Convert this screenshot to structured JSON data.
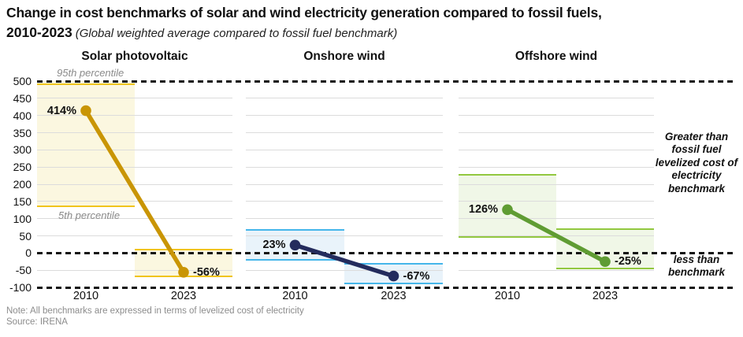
{
  "header": {
    "title_line1": "Change in cost benchmarks of solar and wind electricity generation compared to fossil fuels,",
    "title_line2_bold": "2010-2023",
    "subtitle": "(Global weighted average compared to fossil fuel benchmark)"
  },
  "annotations": {
    "greater": "Greater than fossil fuel levelized cost of electricity benchmark",
    "less": "less than benchmark",
    "p95": "95th percentile",
    "p5": "5th percentile"
  },
  "footer": {
    "note": "Note: All benchmarks are expressed in terms of levelized cost of electricity",
    "source": "Source: IRENA"
  },
  "chart_data": {
    "type": "line",
    "title": "Change in cost benchmarks of solar and wind electricity generation compared to fossil fuels, 2010-2023",
    "subtitle": "Global weighted average compared to fossil fuel benchmark",
    "x_categories": [
      "2010",
      "2023"
    ],
    "ylim": [
      -100,
      500
    ],
    "yticks": [
      500,
      450,
      400,
      350,
      300,
      250,
      200,
      150,
      100,
      50,
      0,
      -50,
      -100
    ],
    "reference_lines": [
      500,
      0,
      -100
    ],
    "grid": true,
    "legend_position": "none",
    "panels": [
      {
        "title": "Solar photovoltaic",
        "values": [
          414,
          -56
        ],
        "value_labels": [
          "414%",
          "-56%"
        ],
        "percentile_bands": [
          [
            133,
            500
          ],
          [
            -70,
            12
          ]
        ],
        "colors": {
          "line": "#C99505",
          "band_fill": "#FBF7E0",
          "band_border": "#F0C41D"
        }
      },
      {
        "title": "Onshore wind",
        "values": [
          23,
          -67
        ],
        "value_labels": [
          "23%",
          "-67%"
        ],
        "percentile_bands": [
          [
            -22,
            70
          ],
          [
            -90,
            -30
          ]
        ],
        "colors": {
          "line": "#242C5D",
          "band_fill": "#E9F3FA",
          "band_border": "#45B6EA"
        }
      },
      {
        "title": "Offshore wind",
        "values": [
          126,
          -25
        ],
        "value_labels": [
          "126%",
          "-25%"
        ],
        "percentile_bands": [
          [
            45,
            230
          ],
          [
            -47,
            72
          ]
        ],
        "colors": {
          "line": "#5F9C33",
          "band_fill": "#F0F7E7",
          "band_border": "#92C83F"
        }
      }
    ]
  }
}
